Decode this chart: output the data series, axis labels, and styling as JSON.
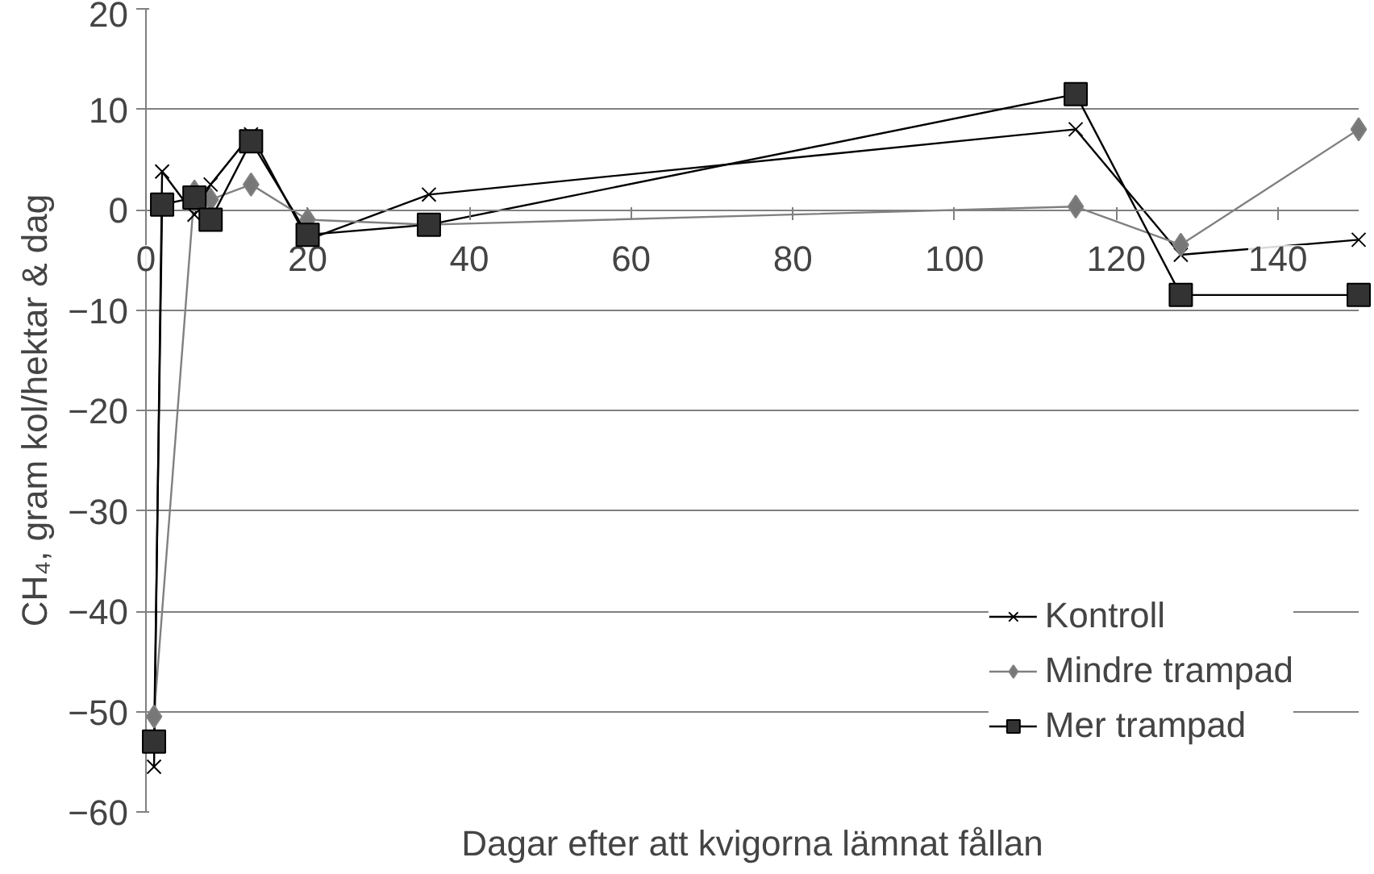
{
  "chart_data": {
    "type": "line",
    "xlabel": "Dagar efter att kvigorna lämnat fållan",
    "ylabel": "CH₄, gram kol/hektar & dag",
    "xlim": [
      0,
      150
    ],
    "xticks": [
      0,
      20,
      40,
      60,
      80,
      100,
      120,
      140
    ],
    "ylim": [
      -60,
      20
    ],
    "yticks": [
      -60,
      -50,
      -40,
      -30,
      -20,
      -10,
      0,
      10,
      20
    ],
    "grid": "y",
    "legend": "bottom right",
    "series": [
      {
        "name": "Kontroll",
        "color": "#000000",
        "marker": "cross",
        "x": [
          1,
          2,
          6,
          8,
          13,
          20,
          35,
          115,
          128,
          150
        ],
        "values": [
          -55.5,
          3.8,
          -0.5,
          2.5,
          7.5,
          -3,
          1.5,
          8,
          -4.5,
          -3
        ]
      },
      {
        "name": "Mindre trampad",
        "color": "#808080",
        "marker": "diamond",
        "x": [
          1,
          6,
          8,
          13,
          20,
          35,
          115,
          128,
          150
        ],
        "values": [
          -50.5,
          1.8,
          1,
          2.5,
          -1,
          -1.5,
          0.3,
          -3.5,
          8
        ]
      },
      {
        "name": "Mer trampad",
        "color": "#000000",
        "marker": "square",
        "x": [
          1,
          2,
          6,
          8,
          13,
          20,
          35,
          115,
          128,
          150
        ],
        "values": [
          -53,
          0.5,
          1.2,
          -1,
          6.8,
          -2.5,
          -1.5,
          11.5,
          -8.5,
          -8.5
        ]
      }
    ]
  }
}
